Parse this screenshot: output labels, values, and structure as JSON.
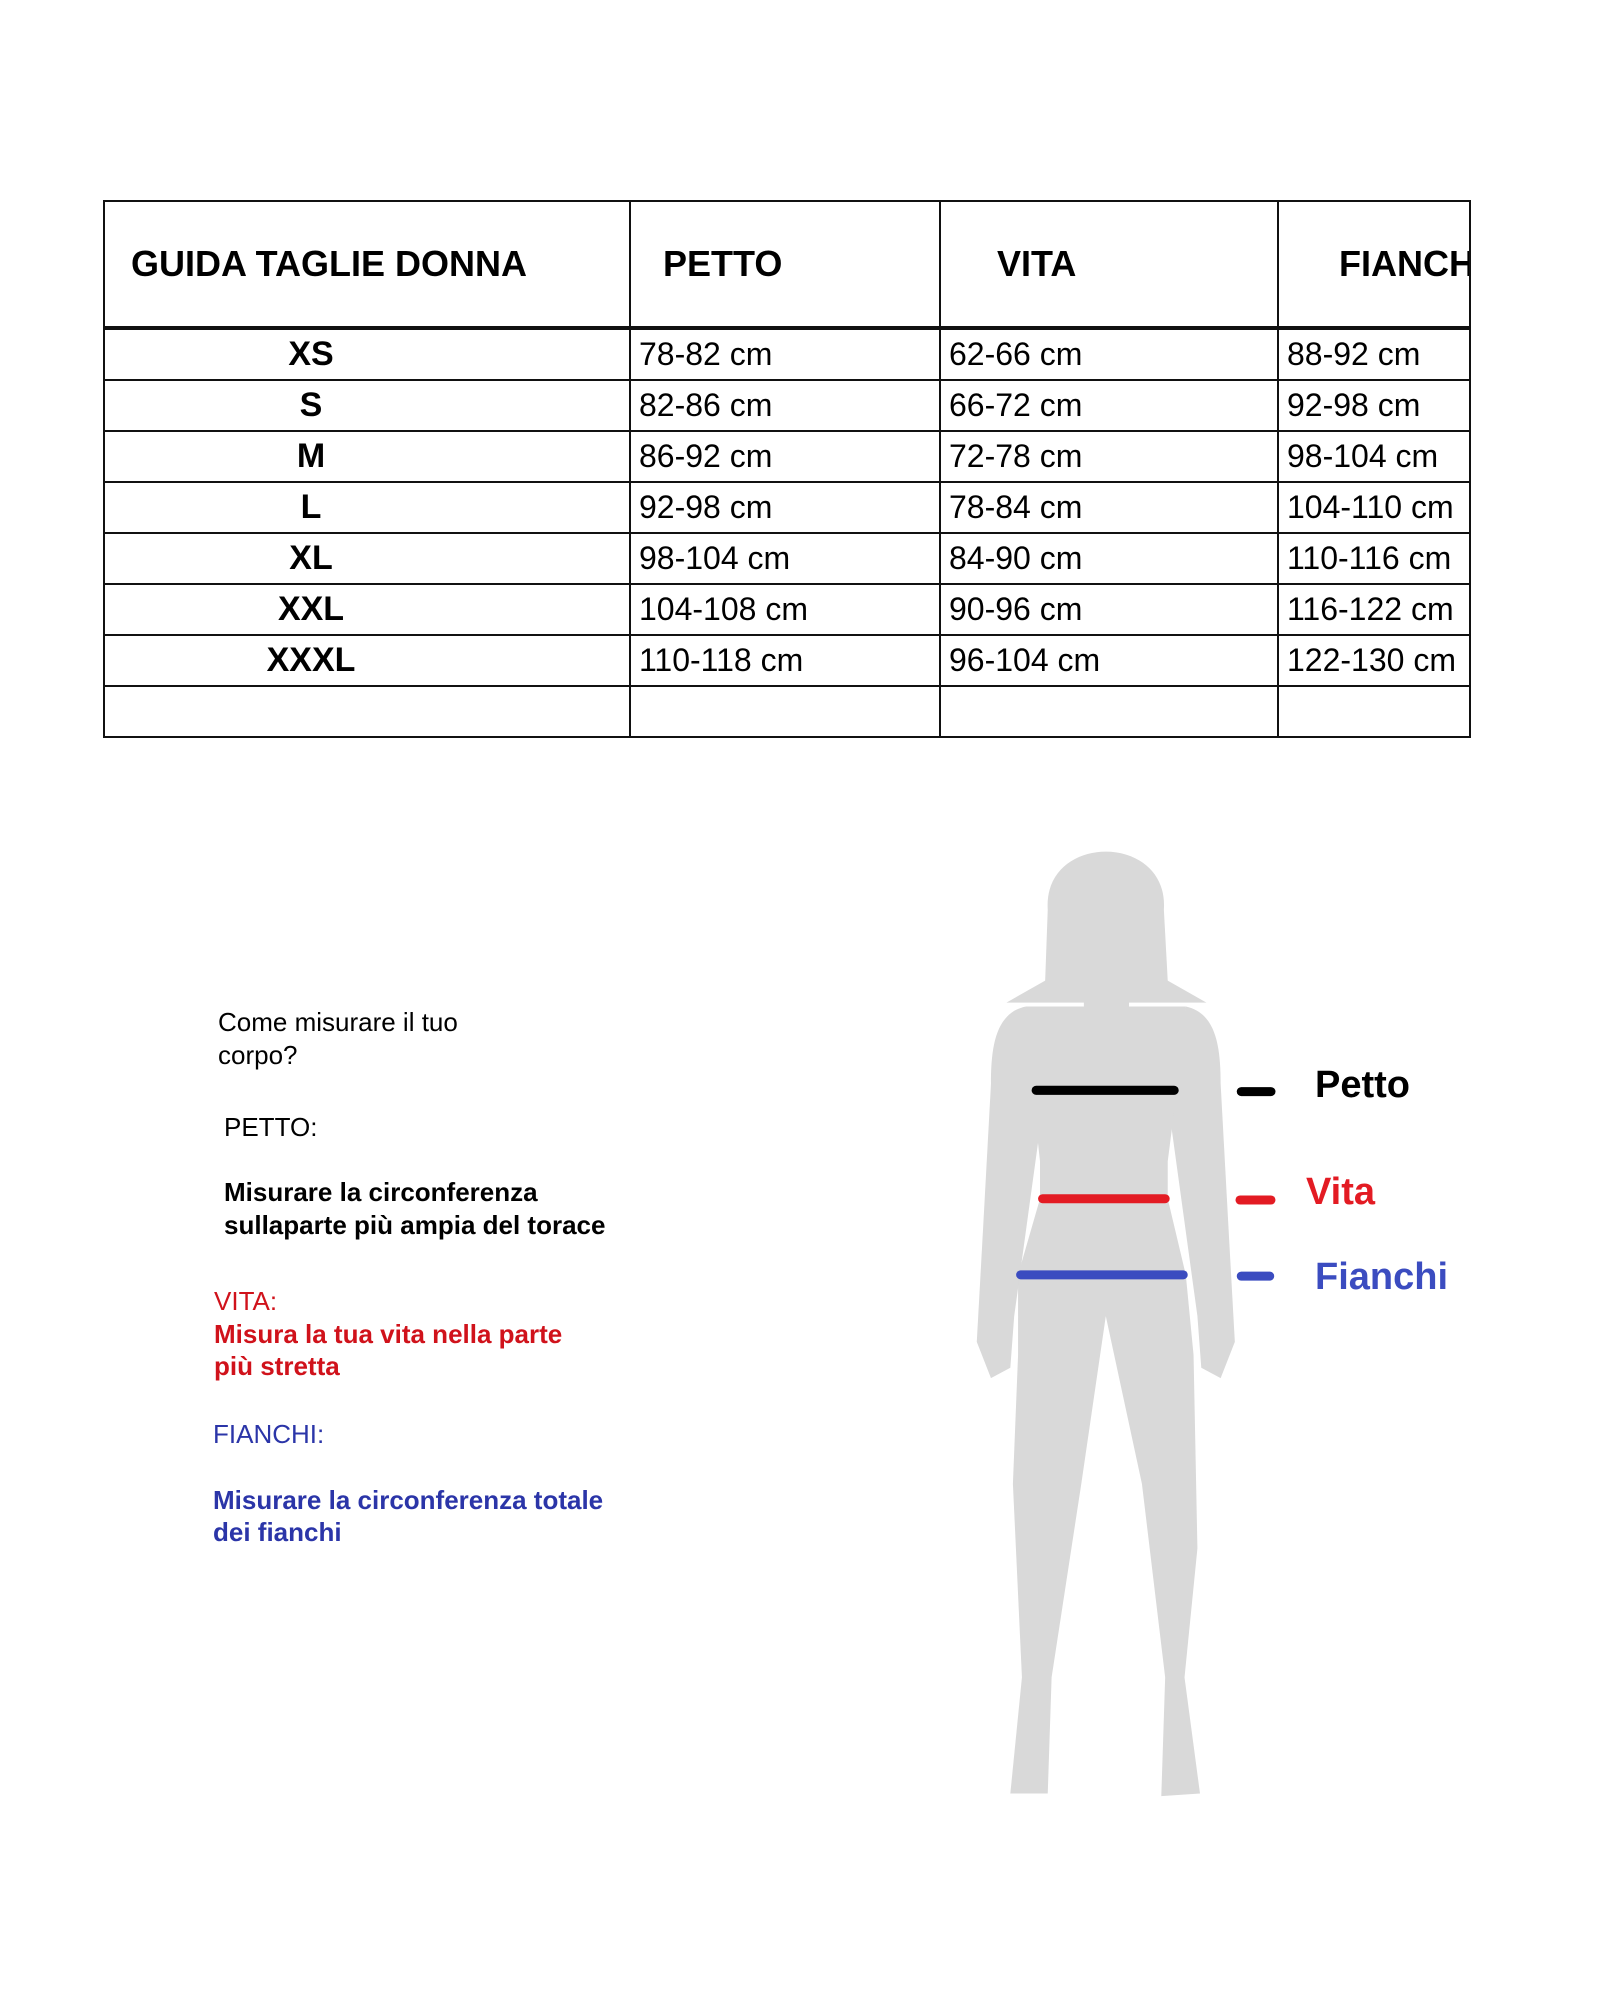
{
  "table": {
    "headers": [
      "GUIDA TAGLIE DONNA",
      "PETTO",
      "VITA",
      "FIANCHI"
    ],
    "rows": [
      [
        "XS",
        "78-82 cm",
        "62-66 cm",
        "88-92 cm"
      ],
      [
        "S",
        "82-86 cm",
        "66-72 cm",
        "92-98 cm"
      ],
      [
        "M",
        "86-92 cm",
        "72-78 cm",
        "98-104 cm"
      ],
      [
        "L",
        "92-98 cm",
        "78-84 cm",
        "104-110 cm"
      ],
      [
        "XL",
        "98-104 cm",
        "84-90 cm",
        "110-116 cm"
      ],
      [
        "XXL",
        "104-108 cm",
        "90-96 cm",
        "116-122 cm"
      ],
      [
        "XXXL",
        "110-118 cm",
        "96-104 cm",
        "122-130 cm"
      ],
      [
        "",
        "",
        "",
        ""
      ]
    ]
  },
  "instructions": {
    "title_line1": "Come misurare il tuo",
    "title_line2": "corpo?",
    "petto_heading": "PETTO:",
    "petto_line1": "Misurare la circonferenza",
    "petto_line2": "sullaparte più ampia del torace",
    "vita_heading": "VITA:",
    "vita_line1": "Misura la tua vita nella parte",
    "vita_line2": "più stretta",
    "fianchi_heading": "FIANCHI:",
    "fianchi_line1": "Misurare la circonferenza totale",
    "fianchi_line2": "dei fianchi"
  },
  "legend": {
    "petto": "Petto",
    "vita": "Vita",
    "fianchi": "Fianchi"
  },
  "colors": {
    "petto": "#000000",
    "vita": "#e31b23",
    "fianchi": "#3b4cc0",
    "silhouette": "#d9d9d9",
    "vita_text": "#d0121b",
    "fianchi_text": "#2b35a8"
  }
}
